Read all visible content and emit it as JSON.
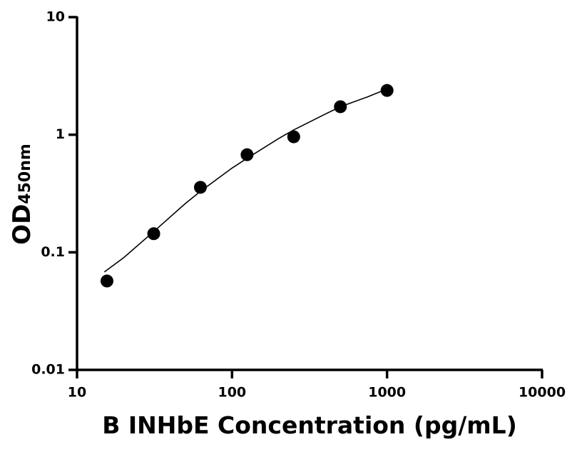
{
  "chart_data": {
    "type": "scatter",
    "xlabel": "B INHbE Concentration (pg/mL)",
    "ylabel": "OD",
    "ylabel_sub": "450nm",
    "xlog": true,
    "ylog": true,
    "xlim": [
      10,
      10000
    ],
    "ylim": [
      0.01,
      10
    ],
    "xticks": [
      10,
      100,
      1000,
      10000
    ],
    "yticks": [
      0.01,
      0.1,
      1,
      10
    ],
    "series": [
      {
        "color": "#000000",
        "x": [
          15.6,
          31.25,
          62.5,
          125,
          250,
          500,
          1000
        ],
        "values": [
          0.057,
          0.144,
          0.357,
          0.676,
          0.96,
          1.73,
          2.38
        ]
      }
    ],
    "fit": {
      "color": "#000000",
      "x": [
        15,
        20,
        31.25,
        50,
        62.5,
        100,
        125,
        200,
        250,
        400,
        500,
        750,
        1000
      ],
      "values": [
        0.068,
        0.09,
        0.15,
        0.26,
        0.33,
        0.52,
        0.63,
        0.93,
        1.1,
        1.5,
        1.73,
        2.1,
        2.45
      ]
    }
  }
}
